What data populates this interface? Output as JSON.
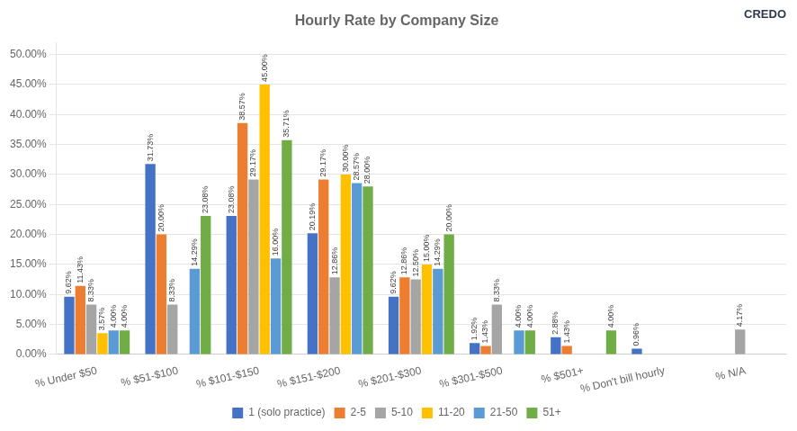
{
  "chart_data": {
    "type": "bar",
    "title": "Hourly Rate by Company Size",
    "annotations": [
      "CREDO"
    ],
    "categories": [
      "% Under $50",
      "% $51-$100",
      "% $101-$150",
      "% $151-$200",
      "% $201-$300",
      "% $301-$500",
      "% $501+",
      "% Don't bill hourly",
      "% N/A"
    ],
    "series": [
      {
        "name": "1 (solo practice)",
        "color": "#4472c4",
        "values": [
          0.0962,
          0.3173,
          0.2308,
          0.2019,
          0.0962,
          0.0192,
          0.0288,
          0.0096,
          0
        ],
        "value_labels": [
          "9.62%",
          "31.73%",
          "23.08%",
          "20.19%",
          "9.62%",
          "1.92%",
          "2.88%",
          "0.96%",
          null
        ]
      },
      {
        "name": "2-5",
        "color": "#ed7d31",
        "values": [
          0.1143,
          0.2,
          0.3857,
          0.2917,
          0.1286,
          0.0143,
          0.0143,
          0,
          0
        ],
        "value_labels": [
          "11.43%",
          "20.00%",
          "38.57%",
          "29.17%",
          "12.86%",
          "1.43%",
          "1.43%",
          null,
          null
        ]
      },
      {
        "name": "5-10",
        "color": "#a5a5a5",
        "values": [
          0.0833,
          0.0833,
          0.2917,
          0.1286,
          0.125,
          0.0833,
          0,
          0,
          0.0417
        ],
        "value_labels": [
          "8.33%",
          "8.33%",
          "29.17%",
          "12.86%",
          "12.50%",
          "8.33%",
          null,
          null,
          "4.17%"
        ]
      },
      {
        "name": "11-20",
        "color": "#ffc000",
        "values": [
          0.0357,
          0,
          0.45,
          0.3,
          0.15,
          0,
          0,
          0,
          0
        ],
        "value_labels": [
          "3.57%",
          null,
          "45.00%",
          "30.00%",
          "15.00%",
          null,
          null,
          null,
          null
        ]
      },
      {
        "name": "21-50",
        "color": "#5b9bd5",
        "values": [
          0.04,
          0.1429,
          0.16,
          0.2857,
          0.1429,
          0.04,
          0,
          0,
          0
        ],
        "value_labels": [
          "4.00%",
          "14.29%",
          "16.00%",
          "28.57%",
          "14.29%",
          "4.00%",
          null,
          null,
          null
        ]
      },
      {
        "name": "51+",
        "color": "#70ad47",
        "values": [
          0.04,
          0.2308,
          0.3571,
          0.28,
          0.2,
          0.04,
          0.04,
          0,
          0
        ],
        "value_labels": [
          "4.00%",
          "23.08%",
          "35.71%",
          "28.00%",
          "20.00%",
          "4.00%",
          "4.00%",
          null,
          null
        ]
      }
    ],
    "ylim": [
      0,
      0.52
    ],
    "yticks": [
      {
        "value": 0.0,
        "label": "0.00%"
      },
      {
        "value": 0.05,
        "label": "5.00%"
      },
      {
        "value": 0.1,
        "label": "10.00%"
      },
      {
        "value": 0.15,
        "label": "15.00%"
      },
      {
        "value": 0.2,
        "label": "20.00%"
      },
      {
        "value": 0.25,
        "label": "25.00%"
      },
      {
        "value": 0.3,
        "label": "30.00%"
      },
      {
        "value": 0.35,
        "label": "35.00%"
      },
      {
        "value": 0.4,
        "label": "40.00%"
      },
      {
        "value": 0.45,
        "label": "45.00%"
      },
      {
        "value": 0.5,
        "label": "50.00%"
      }
    ],
    "grid": true,
    "legend": "bottom",
    "data_labels": true
  }
}
